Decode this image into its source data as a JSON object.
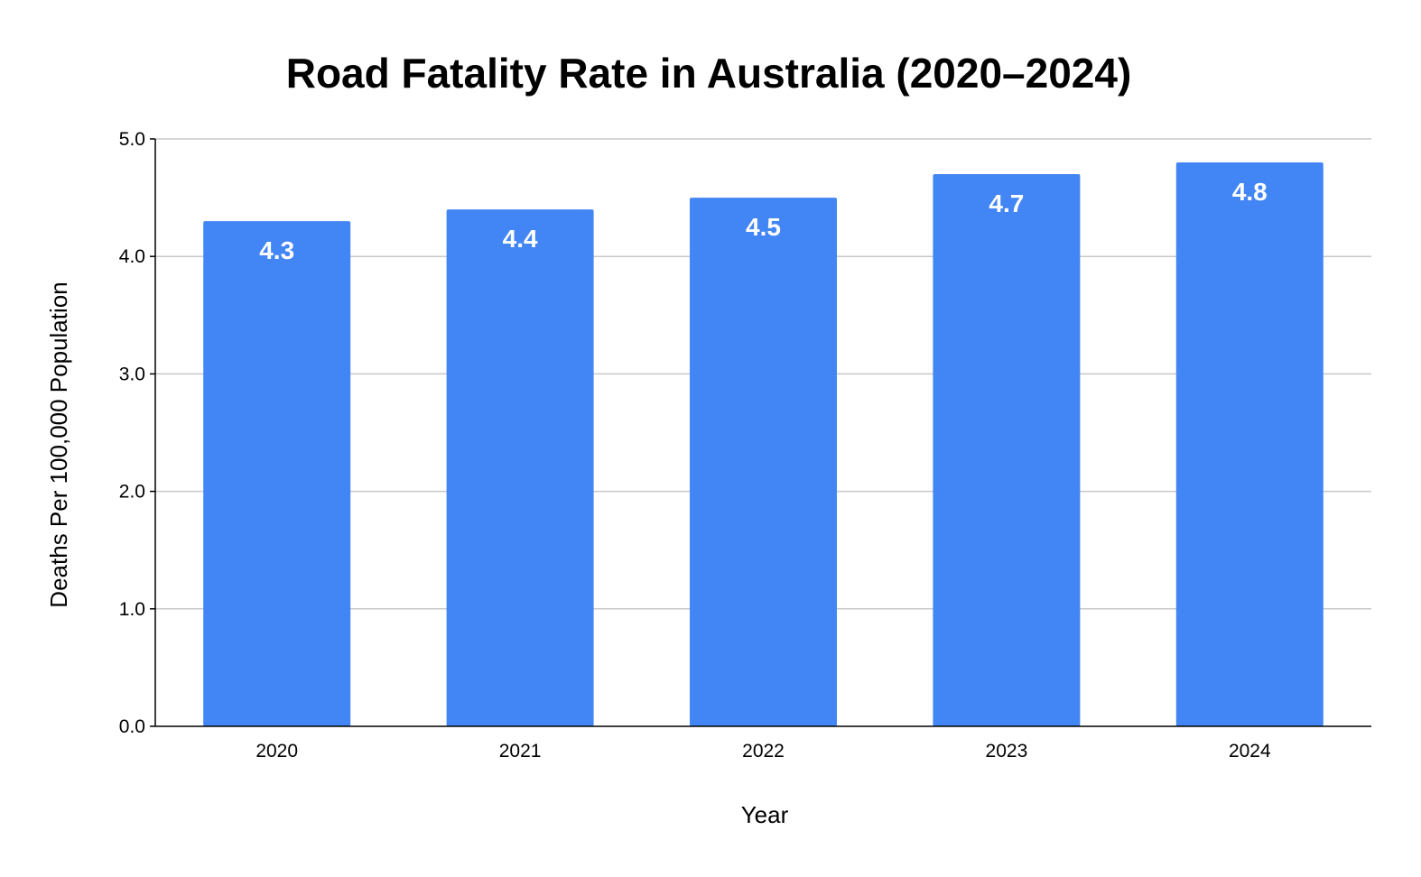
{
  "chart_data": {
    "type": "bar",
    "title": "Road Fatality Rate in Australia (2020–2024)",
    "xlabel": "Year",
    "ylabel": "Deaths Per 100,000 Population",
    "categories": [
      "2020",
      "2021",
      "2022",
      "2023",
      "2024"
    ],
    "values": [
      4.3,
      4.4,
      4.5,
      4.7,
      4.8
    ],
    "data_labels": [
      "4.3",
      "4.4",
      "4.5",
      "4.7",
      "4.8"
    ],
    "ylim": [
      0,
      5
    ],
    "yticks": [
      "0.0",
      "1.0",
      "2.0",
      "3.0",
      "4.0",
      "5.0"
    ],
    "grid": true,
    "legend": "none",
    "bar_color": "#4285f4"
  }
}
